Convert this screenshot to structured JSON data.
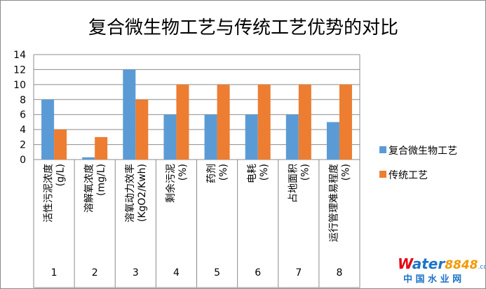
{
  "chart_data": {
    "type": "bar",
    "title": "复合微生物工艺与传统工艺优势的对比",
    "categories": [
      [
        "活性污泥浓度",
        "(g/L)"
      ],
      [
        "溶解氧浓度",
        "(mg/L)"
      ],
      [
        "溶氧动力效率",
        "(KgO2/Kwh)"
      ],
      [
        "剩余污泥",
        "(%)"
      ],
      [
        "药剂",
        "(%)"
      ],
      [
        "电耗",
        "(%)"
      ],
      [
        "占地面积",
        "(%)"
      ],
      [
        "运行管理难易程度",
        "(%)"
      ]
    ],
    "category_numbers": [
      "1",
      "2",
      "3",
      "4",
      "5",
      "6",
      "7",
      "8"
    ],
    "series": [
      {
        "name": "复合微生物工艺",
        "values": [
          8,
          0.3,
          12,
          6,
          6,
          6,
          6,
          5
        ],
        "color": "#5b9bd5"
      },
      {
        "name": "传统工艺",
        "values": [
          4,
          3,
          8,
          10,
          10,
          10,
          10,
          10
        ],
        "color": "#ed7d31"
      }
    ],
    "ylim": [
      0,
      14
    ],
    "yticks": [
      "0",
      "2",
      "4",
      "6",
      "8",
      "10",
      "12",
      "14"
    ],
    "grid": true,
    "legend": "right"
  },
  "watermark": {
    "brand_first": "W",
    "brand_rest": "ater",
    "brand_number": "8848",
    "brand_suffix": ".com",
    "subtitle": "中 国 水 业 网",
    "colors": {
      "red": "#e60012",
      "blue": "#1e73c8",
      "orange": "#f39800"
    }
  }
}
